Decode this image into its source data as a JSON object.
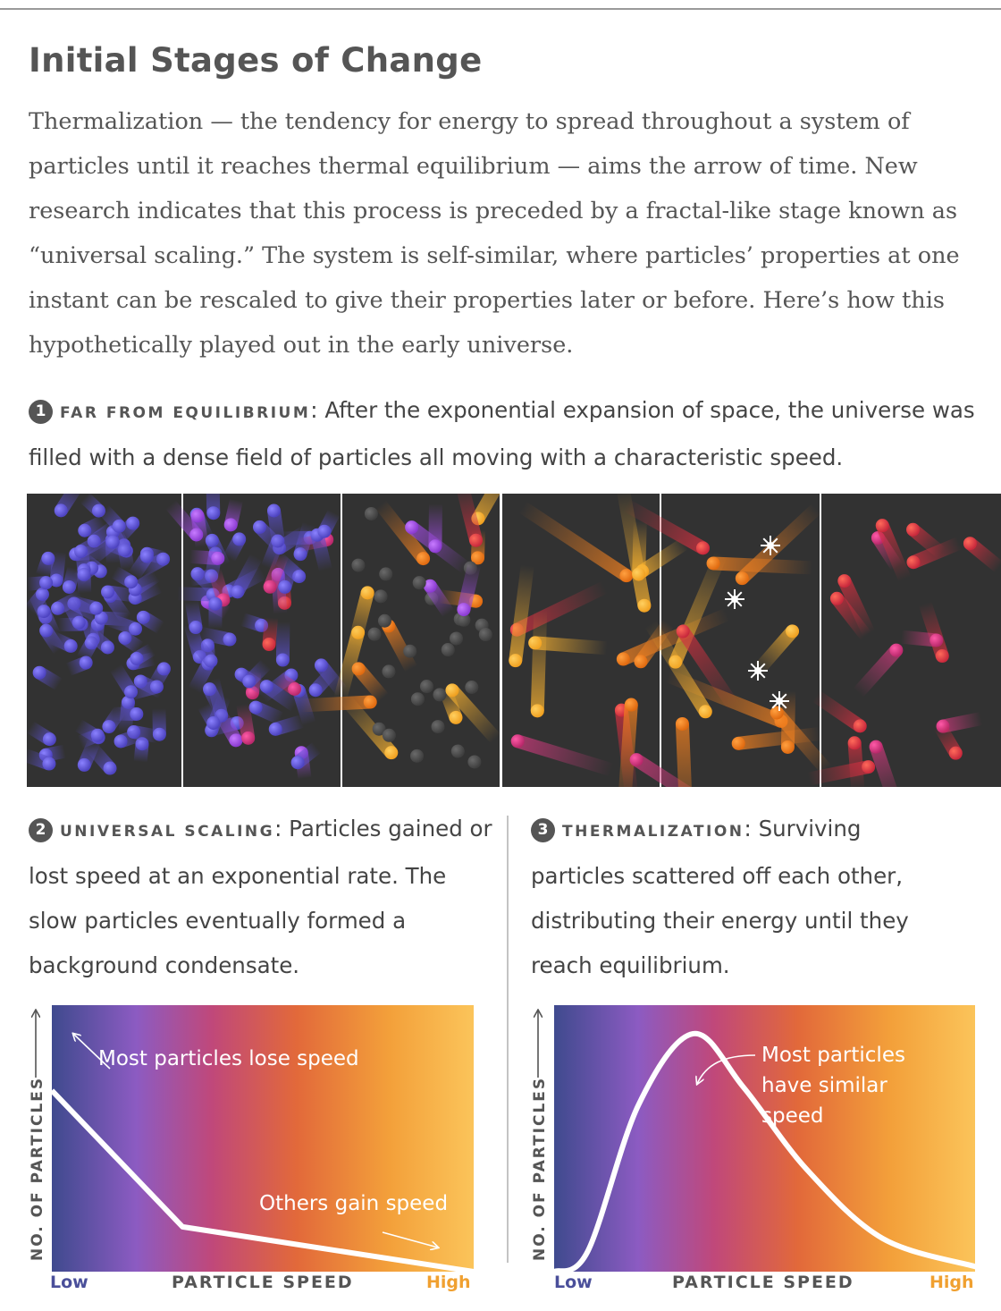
{
  "title": "Initial Stages of Change",
  "intro": "Thermalization — the tendency for energy to spread throughout a system of particles until it reaches thermal equilibrium — aims the arrow of time. New research indicates that this process is preceded by a fractal-like stage known as “universal scaling.” The system is self-similar, where particles’ properties at one instant can be rescaled to give their properties later or before. Here’s how this hypothetically played out in the early universe.",
  "steps": [
    {
      "number": "1",
      "label": "FAR FROM EQUILIBRIUM",
      "text": "After the exponential expansion of space, the universe was filled with a dense field of particles all moving with a characteristic speed."
    },
    {
      "number": "2",
      "label": "UNIVERSAL SCALING",
      "text": "Particles gained or lost speed at an exponential rate. The slow particles eventually formed a background condensate."
    },
    {
      "number": "3",
      "label": "THERMALIZATION",
      "text": "Surviving particles scattered off each other, distributing their energy until they reach equilibrium."
    }
  ],
  "colors": {
    "panel_bg": "#323232",
    "slow": "#5a4fc8",
    "medium": "#c83a6a",
    "fast": "#f0a030",
    "condensate": "#4a4a4a",
    "gradient": [
      "#3f4a8e",
      "#8c5bc2",
      "#c0487a",
      "#e2693a",
      "#f3a03a",
      "#fbc45a"
    ]
  },
  "chart_data": [
    {
      "type": "line",
      "xlabel": "PARTICLE SPEED",
      "ylabel": "NO. OF PARTICLES",
      "x_ticks": [
        "Low",
        "High"
      ],
      "annotations": [
        "Most particles lose speed",
        "Others gain speed"
      ],
      "series": [
        {
          "x": [
            0.0,
            0.31,
            1.0
          ],
          "values": [
            0.85,
            0.21,
            0.0
          ]
        }
      ]
    },
    {
      "type": "line",
      "xlabel": "PARTICLE SPEED",
      "ylabel": "NO. OF PARTICLES",
      "x_ticks": [
        "Low",
        "High"
      ],
      "annotations": [
        "Most particles have similar speed"
      ],
      "series": [
        {
          "x": [
            0.0,
            0.08,
            0.2,
            0.33,
            0.45,
            0.6,
            0.78,
            1.0
          ],
          "values": [
            0.0,
            0.08,
            0.65,
            0.93,
            0.72,
            0.4,
            0.13,
            0.02
          ]
        }
      ]
    }
  ]
}
